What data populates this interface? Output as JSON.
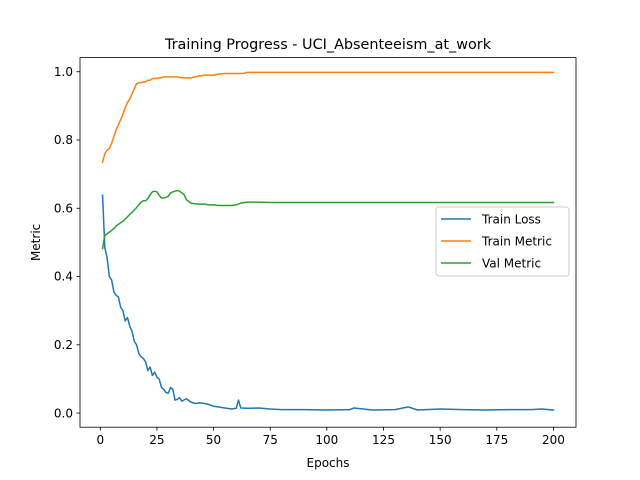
{
  "chart_data": {
    "type": "line",
    "title": "Training Progress - UCI_Absenteeism_at_work",
    "xlabel": "Epochs",
    "ylabel": "Metric",
    "xlim": [
      -8.95,
      209.95
    ],
    "ylim": [
      -0.0414,
      1.0414
    ],
    "xticks": [
      0,
      25,
      50,
      75,
      100,
      125,
      150,
      175,
      200
    ],
    "yticks": [
      0.0,
      0.2,
      0.4,
      0.6,
      0.8,
      1.0
    ],
    "xtick_labels": [
      "0",
      "25",
      "50",
      "75",
      "100",
      "125",
      "150",
      "175",
      "200"
    ],
    "ytick_labels": [
      "0.0",
      "0.2",
      "0.4",
      "0.6",
      "0.8",
      "1.0"
    ],
    "grid": false,
    "legend_position": "center-right",
    "series": [
      {
        "name": "Train Loss",
        "color": "#1f77b4",
        "x": [
          1,
          2,
          3,
          4,
          5,
          6,
          7,
          8,
          9,
          10,
          11,
          12,
          13,
          14,
          15,
          16,
          17,
          18,
          19,
          20,
          21,
          22,
          23,
          24,
          25,
          26,
          27,
          28,
          29,
          30,
          31,
          32,
          33,
          34,
          35,
          36,
          38,
          40,
          42,
          44,
          46,
          48,
          50,
          52,
          55,
          58,
          60,
          61,
          62,
          65,
          70,
          75,
          80,
          90,
          100,
          110,
          112,
          120,
          130,
          136,
          140,
          150,
          160,
          170,
          180,
          190,
          195,
          200
        ],
        "values": [
          0.638,
          0.485,
          0.455,
          0.4,
          0.39,
          0.355,
          0.345,
          0.34,
          0.31,
          0.3,
          0.27,
          0.28,
          0.255,
          0.24,
          0.21,
          0.2,
          0.175,
          0.165,
          0.16,
          0.15,
          0.125,
          0.135,
          0.11,
          0.12,
          0.105,
          0.1,
          0.075,
          0.07,
          0.06,
          0.058,
          0.075,
          0.07,
          0.038,
          0.04,
          0.045,
          0.035,
          0.042,
          0.032,
          0.028,
          0.03,
          0.028,
          0.025,
          0.02,
          0.018,
          0.015,
          0.012,
          0.014,
          0.038,
          0.015,
          0.014,
          0.015,
          0.012,
          0.01,
          0.01,
          0.009,
          0.01,
          0.015,
          0.009,
          0.01,
          0.018,
          0.009,
          0.012,
          0.01,
          0.009,
          0.01,
          0.01,
          0.012,
          0.009
        ]
      },
      {
        "name": "Train Metric",
        "color": "#ff7f0e",
        "x": [
          1,
          2,
          3,
          4,
          5,
          6,
          7,
          8,
          9,
          10,
          11,
          12,
          13,
          14,
          15,
          16,
          17,
          18,
          19,
          20,
          21,
          22,
          23,
          24,
          25,
          26,
          27,
          28,
          29,
          30,
          32,
          34,
          36,
          38,
          40,
          42,
          44,
          46,
          48,
          50,
          52,
          55,
          60,
          63,
          65,
          70,
          80,
          90,
          100,
          120,
          150,
          180,
          200
        ],
        "values": [
          0.735,
          0.76,
          0.77,
          0.775,
          0.79,
          0.81,
          0.83,
          0.845,
          0.86,
          0.875,
          0.895,
          0.91,
          0.92,
          0.935,
          0.95,
          0.965,
          0.968,
          0.968,
          0.97,
          0.97,
          0.975,
          0.975,
          0.98,
          0.98,
          0.98,
          0.982,
          0.982,
          0.985,
          0.985,
          0.985,
          0.985,
          0.985,
          0.982,
          0.982,
          0.982,
          0.985,
          0.988,
          0.99,
          0.99,
          0.99,
          0.993,
          0.995,
          0.995,
          0.995,
          0.998,
          0.998,
          0.998,
          0.998,
          0.998,
          0.998,
          0.998,
          0.998,
          0.998
        ]
      },
      {
        "name": "Val Metric",
        "color": "#2ca02c",
        "x": [
          1,
          2,
          3,
          4,
          5,
          6,
          7,
          8,
          9,
          10,
          11,
          12,
          13,
          14,
          15,
          16,
          17,
          18,
          19,
          20,
          21,
          22,
          23,
          24,
          25,
          26,
          27,
          28,
          29,
          30,
          31,
          32,
          33,
          34,
          35,
          36,
          37,
          38,
          39,
          40,
          42,
          44,
          46,
          48,
          50,
          52,
          55,
          58,
          60,
          62,
          65,
          70,
          75,
          80,
          90,
          100,
          110,
          120,
          150,
          180,
          200
        ],
        "values": [
          0.482,
          0.52,
          0.525,
          0.53,
          0.535,
          0.54,
          0.548,
          0.553,
          0.558,
          0.562,
          0.568,
          0.575,
          0.582,
          0.588,
          0.595,
          0.602,
          0.61,
          0.618,
          0.622,
          0.622,
          0.628,
          0.64,
          0.648,
          0.65,
          0.648,
          0.638,
          0.63,
          0.63,
          0.632,
          0.635,
          0.645,
          0.648,
          0.65,
          0.652,
          0.65,
          0.645,
          0.64,
          0.625,
          0.62,
          0.615,
          0.613,
          0.612,
          0.612,
          0.61,
          0.61,
          0.608,
          0.608,
          0.608,
          0.61,
          0.615,
          0.618,
          0.618,
          0.617,
          0.617,
          0.617,
          0.617,
          0.617,
          0.617,
          0.617,
          0.617,
          0.617
        ]
      }
    ]
  }
}
